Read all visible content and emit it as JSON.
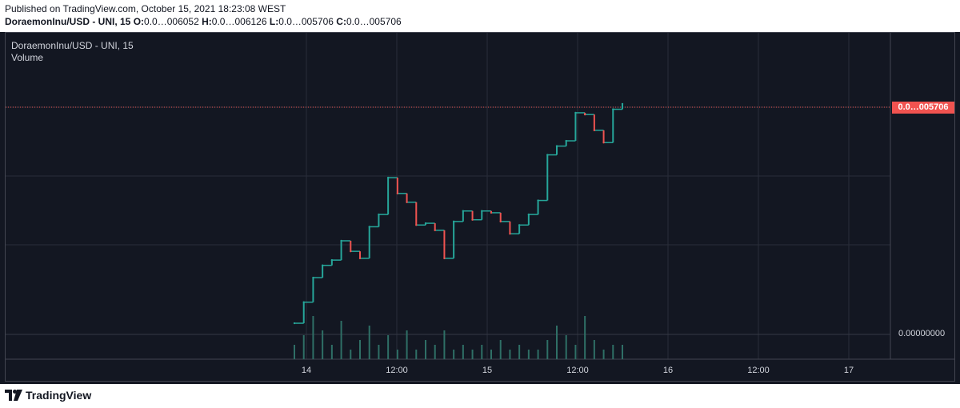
{
  "header": {
    "published": "Published on TradingView.com, October 15, 2021 18:23:08 WEST",
    "symbol": "DoraemonInu/USD - UNI, 15",
    "ohlc": [
      {
        "label": "O:",
        "value": "0.0…006052"
      },
      {
        "label": "H:",
        "value": "0.0…006126"
      },
      {
        "label": "L:",
        "value": "0.0…005706"
      },
      {
        "label": "C:",
        "value": "0.0…005706"
      }
    ]
  },
  "legend": {
    "title": "DoraemonInu/USD - UNI, 15",
    "volume": "Volume"
  },
  "price_axis": {
    "current_price_label": "0.0…005706",
    "volume_zero_label": "0.00000000"
  },
  "time_axis": [
    "14",
    "12:00",
    "15",
    "12:00",
    "16",
    "12:00",
    "17"
  ],
  "footer": {
    "brand": "TradingView"
  },
  "colors": {
    "background": "#131722",
    "up": "#26a69a",
    "down": "#ef5350",
    "price_line": "#f05350",
    "grid": "#2a2e39",
    "volume": "#2f6f66"
  },
  "chart_data": {
    "type": "line",
    "interval": "15",
    "series": [
      {
        "name": "DoraemonInu/USD - UNI",
        "x": [
          "Oct 13 21:45",
          "Oct 14 00:00",
          "Oct 14 01:15",
          "Oct 14 02:30",
          "Oct 14 03:45",
          "Oct 14 05:00",
          "Oct 14 06:15",
          "Oct 14 07:30",
          "Oct 14 08:45",
          "Oct 14 10:00",
          "Oct 14 11:15",
          "Oct 14 12:30",
          "Oct 14 13:45",
          "Oct 14 15:00",
          "Oct 14 16:15",
          "Oct 14 17:30",
          "Oct 14 18:45",
          "Oct 14 20:00",
          "Oct 14 21:15",
          "Oct 14 22:30",
          "Oct 14 23:45",
          "Oct 15 01:00",
          "Oct 15 02:15",
          "Oct 15 03:30",
          "Oct 15 04:45",
          "Oct 15 06:00",
          "Oct 15 07:15",
          "Oct 15 08:30",
          "Oct 15 09:45",
          "Oct 15 11:00",
          "Oct 15 12:15",
          "Oct 15 13:30",
          "Oct 15 14:45",
          "Oct 15 16:00",
          "Oct 15 17:15",
          "Oct 15 18:00"
        ],
        "values": [
          5,
          17,
          31,
          38,
          41,
          52,
          46,
          42,
          60,
          67,
          88,
          79,
          74,
          61,
          62,
          58,
          42,
          63,
          69,
          64,
          69,
          68,
          63,
          56,
          61,
          67,
          75,
          101,
          106,
          109,
          125,
          124,
          115,
          108,
          127,
          130
        ]
      },
      {
        "name": "Volume",
        "values": [
          3,
          5,
          9,
          6,
          3,
          8,
          2,
          4,
          7,
          3,
          5,
          2,
          6,
          2,
          4,
          3,
          6,
          2,
          3,
          2,
          3,
          2,
          4,
          2,
          3,
          2,
          2,
          4,
          7,
          5,
          3,
          9,
          4,
          2,
          3,
          3
        ]
      }
    ],
    "axis_labels": {
      "x": [
        "14",
        "12:00",
        "15",
        "12:00",
        "16",
        "12:00",
        "17"
      ]
    },
    "grid": true
  }
}
